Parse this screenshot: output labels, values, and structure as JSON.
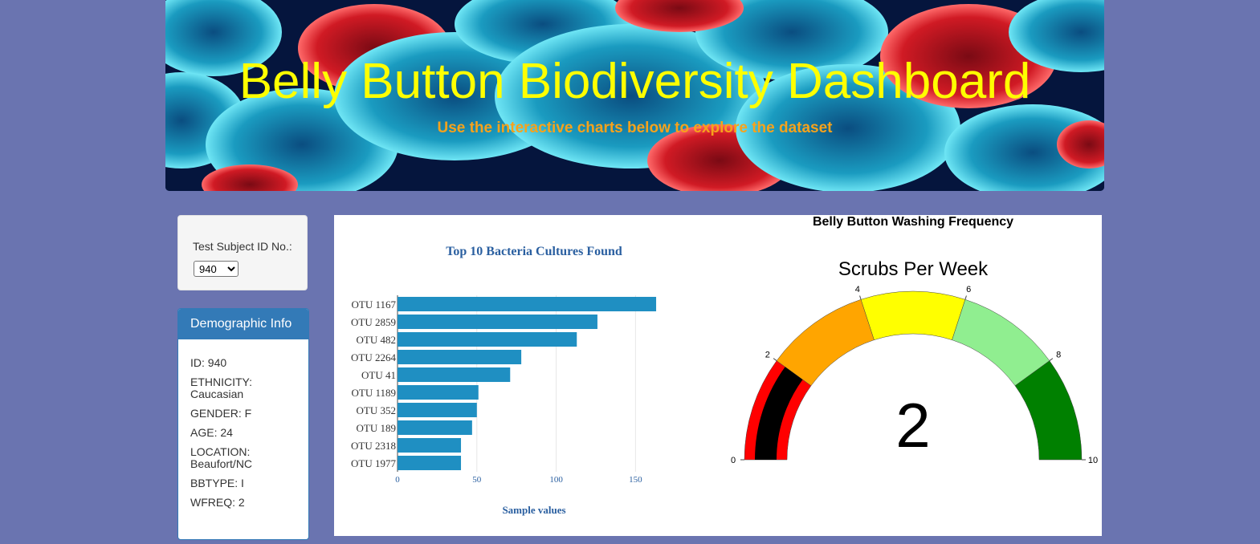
{
  "header": {
    "title": "Belly Button Biodiversity Dashboard",
    "subtitle": "Use the interactive charts below to explore the dataset"
  },
  "selector": {
    "label": "Test Subject ID No.:",
    "selected": "940"
  },
  "demographics": {
    "title": "Demographic Info",
    "lines": [
      "ID: 940",
      "ETHNICITY: Caucasian",
      "GENDER: F",
      "AGE: 24",
      "LOCATION: Beaufort/NC",
      "BBTYPE: I",
      "WFREQ: 2"
    ]
  },
  "chart_data": [
    {
      "type": "bar",
      "orientation": "horizontal",
      "title": "Top 10 Bacteria Cultures Found",
      "xlabel": "Sample values",
      "ylabel": "",
      "categories": [
        "OTU 1167",
        "OTU 2859",
        "OTU 482",
        "OTU 2264",
        "OTU 41",
        "OTU 1189",
        "OTU 352",
        "OTU 189",
        "OTU 2318",
        "OTU 1977"
      ],
      "values": [
        163,
        126,
        113,
        78,
        71,
        51,
        50,
        47,
        40,
        40
      ],
      "xlim": [
        0,
        165
      ],
      "xticks": [
        0,
        50,
        100,
        150
      ],
      "grid": true,
      "color": "#1f8fc2"
    },
    {
      "type": "gauge",
      "title": "Belly Button Washing Frequency",
      "subtitle": "Scrubs Per Week",
      "value": 2,
      "range": [
        0,
        10
      ],
      "ticks": [
        0,
        2,
        4,
        6,
        8,
        10
      ],
      "bands": [
        {
          "from": 0,
          "to": 2,
          "color": "#ff0000"
        },
        {
          "from": 2,
          "to": 4,
          "color": "#ffa500"
        },
        {
          "from": 4,
          "to": 6,
          "color": "#ffff00"
        },
        {
          "from": 6,
          "to": 8,
          "color": "#90ee90"
        },
        {
          "from": 8,
          "to": 10,
          "color": "#008000"
        }
      ],
      "bar_color": "#000000"
    }
  ]
}
